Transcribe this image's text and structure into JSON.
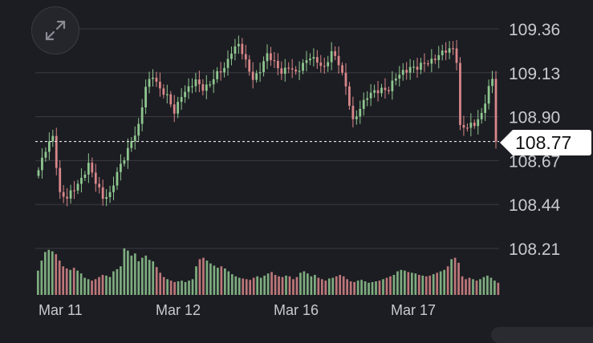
{
  "chart_data": {
    "type": "candlestick",
    "y_axis": {
      "ticks": [
        "109.36",
        "109.13",
        "108.90",
        "108.67",
        "108.44",
        "108.21"
      ],
      "tick_values": [
        109.36,
        109.13,
        108.9,
        108.67,
        108.44,
        108.21
      ],
      "position": "right",
      "grid": true
    },
    "x_axis": {
      "ticks": [
        "Mar 11",
        "Mar 12",
        "Mar 16",
        "Mar 17"
      ]
    },
    "current_price": {
      "value": 108.77,
      "label": "108.77",
      "line_style": "dashed"
    },
    "colors": {
      "up": "#8fc790",
      "down": "#d9878b",
      "background": "#1c1d22",
      "grid": "#3a3b41",
      "text": "#c9cad0",
      "tag_bg": "#ffffff"
    },
    "anchors": [
      [
        0,
        108.62
      ],
      [
        2,
        108.72
      ],
      [
        4,
        108.8
      ],
      [
        6,
        108.5
      ],
      [
        8,
        108.47
      ],
      [
        10,
        108.52
      ],
      [
        12,
        108.58
      ],
      [
        14,
        108.65
      ],
      [
        16,
        108.55
      ],
      [
        18,
        108.48
      ],
      [
        20,
        108.5
      ],
      [
        22,
        108.6
      ],
      [
        24,
        108.68
      ],
      [
        26,
        108.78
      ],
      [
        28,
        108.85
      ],
      [
        30,
        109.05
      ],
      [
        32,
        109.12
      ],
      [
        34,
        109.05
      ],
      [
        36,
        109.0
      ],
      [
        38,
        108.92
      ],
      [
        40,
        109.02
      ],
      [
        42,
        109.05
      ],
      [
        44,
        109.08
      ],
      [
        46,
        109.05
      ],
      [
        48,
        109.08
      ],
      [
        50,
        109.12
      ],
      [
        52,
        109.15
      ],
      [
        54,
        109.25
      ],
      [
        56,
        109.28
      ],
      [
        58,
        109.18
      ],
      [
        60,
        109.1
      ],
      [
        62,
        109.15
      ],
      [
        64,
        109.22
      ],
      [
        66,
        109.18
      ],
      [
        68,
        109.14
      ],
      [
        70,
        109.16
      ],
      [
        72,
        109.12
      ],
      [
        74,
        109.18
      ],
      [
        76,
        109.22
      ],
      [
        78,
        109.18
      ],
      [
        80,
        109.15
      ],
      [
        82,
        109.25
      ],
      [
        84,
        109.18
      ],
      [
        86,
        109.05
      ],
      [
        88,
        108.88
      ],
      [
        90,
        108.95
      ],
      [
        92,
        109.0
      ],
      [
        94,
        109.03
      ],
      [
        96,
        109.05
      ],
      [
        98,
        109.04
      ],
      [
        100,
        109.1
      ],
      [
        102,
        109.14
      ],
      [
        104,
        109.16
      ],
      [
        106,
        109.15
      ],
      [
        108,
        109.18
      ],
      [
        110,
        109.2
      ],
      [
        112,
        109.22
      ],
      [
        114,
        109.24
      ],
      [
        116,
        109.26
      ],
      [
        117,
        109.2
      ],
      [
        118,
        108.85
      ],
      [
        120,
        108.84
      ],
      [
        122,
        108.86
      ],
      [
        124,
        108.92
      ],
      [
        126,
        109.05
      ],
      [
        127,
        109.09
      ],
      [
        128,
        108.77
      ]
    ],
    "volumes": [
      34,
      48,
      60,
      63,
      61,
      57,
      48,
      40,
      37,
      35,
      38,
      34,
      30,
      24,
      22,
      20,
      22,
      25,
      28,
      27,
      25,
      33,
      36,
      40,
      65,
      62,
      55,
      58,
      47,
      52,
      55,
      49,
      47,
      39,
      31,
      25,
      22,
      20,
      18,
      19,
      20,
      18,
      20,
      22,
      40,
      50,
      52,
      48,
      44,
      41,
      38,
      40,
      37,
      33,
      29,
      26,
      24,
      23,
      22,
      21,
      24,
      26,
      24,
      27,
      30,
      32,
      28,
      26,
      25,
      27,
      26,
      22,
      25,
      31,
      33,
      30,
      26,
      28,
      24,
      22,
      20,
      23,
      24,
      26,
      28,
      26,
      22,
      19,
      18,
      20,
      21,
      19,
      17,
      18,
      19,
      20,
      22,
      24,
      26,
      28,
      33,
      35,
      34,
      32,
      31,
      30,
      28,
      27,
      26,
      27,
      29,
      31,
      33,
      35,
      40,
      50,
      52,
      45,
      26,
      22,
      24,
      22,
      20,
      22,
      25,
      27,
      24,
      20,
      17
    ]
  }
}
